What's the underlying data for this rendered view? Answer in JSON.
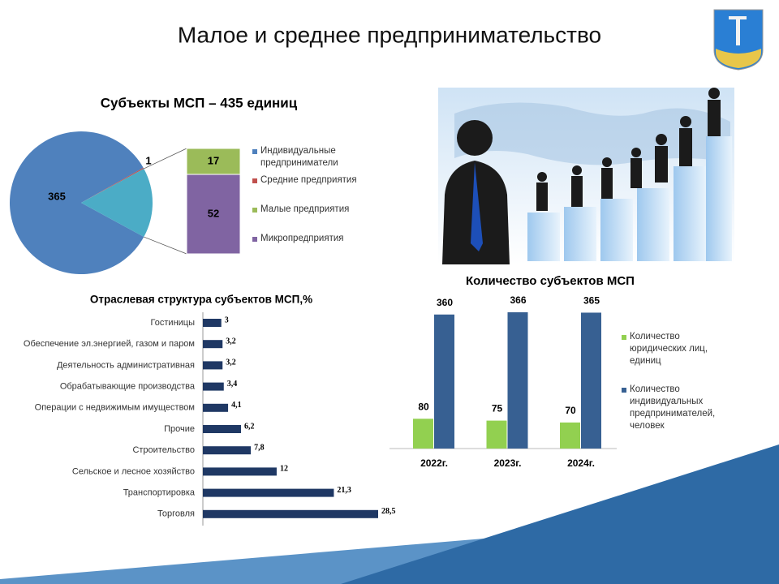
{
  "title": "Малое и среднее предпринимательство",
  "chart_data": [
    {
      "type": "pie",
      "title": "Субъекты МСП – 435 единиц",
      "categories": [
        "Индивидуальные предприниматели",
        "Средние предприятия",
        "Малые предприятия",
        "Микропредприятия"
      ],
      "values": [
        365,
        1,
        17,
        52
      ],
      "colors": [
        "#4f81bd",
        "#c0504d",
        "#9bbb59",
        "#8064a2"
      ],
      "other_color": "#4bacc6"
    },
    {
      "type": "bar",
      "orientation": "horizontal",
      "title": "Отраслевая структура субъектов МСП,%",
      "categories": [
        "Гостиницы",
        "Обеспечение эл.энергией, газом и паром",
        "Деятельность административная",
        "Обрабатывающие производства",
        "Операции с недвижимым имуществом",
        "Прочие",
        "Строительство",
        "Сельское и лесное хозяйство",
        "Транспортировка",
        "Торговля"
      ],
      "values": [
        3,
        3.2,
        3.2,
        3.4,
        4.1,
        6.2,
        7.8,
        12,
        21.3,
        28.5
      ],
      "value_labels": [
        "3",
        "3,2",
        "3,2",
        "3,4",
        "4,1",
        "6,2",
        "7,8",
        "12",
        "21,3",
        "28,5"
      ],
      "color": "#1f3864"
    },
    {
      "type": "bar",
      "title": "Количество субъектов МСП",
      "categories": [
        "2022г.",
        "2023г.",
        "2024г."
      ],
      "series": [
        {
          "name": "Количество юридических лиц, единиц",
          "color": "#92d050",
          "values": [
            80,
            75,
            70
          ]
        },
        {
          "name": "Количество индивидуальных предпринимателей, человек",
          "color": "#376092",
          "values": [
            360,
            366,
            365
          ]
        }
      ]
    }
  ]
}
